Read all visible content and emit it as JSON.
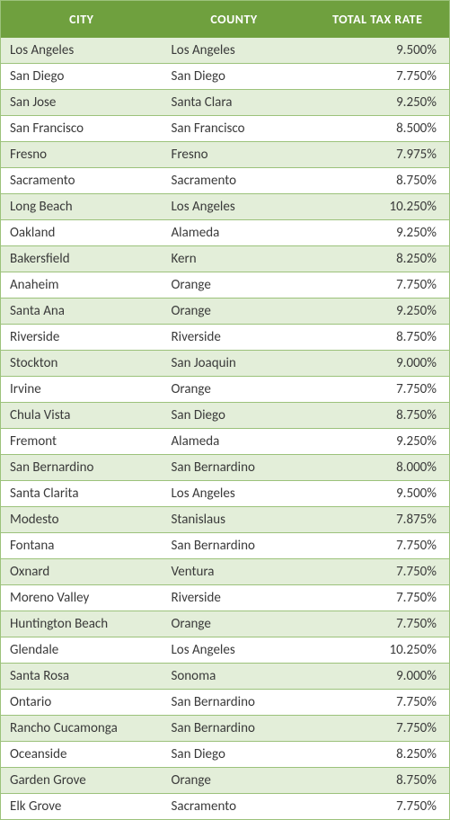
{
  "table": {
    "header_bg": "#6fa03e",
    "header_color": "#ffffff",
    "border_color": "#9cc27b",
    "row_odd_bg": "#e3eed9",
    "row_even_bg": "#ffffff",
    "text_color": "#3a3a3a",
    "columns": [
      "CITY",
      "COUNTY",
      "TOTAL TAX RATE"
    ],
    "rows": [
      {
        "city": "Los Angeles",
        "county": "Los Angeles",
        "rate": "9.500%"
      },
      {
        "city": "San Diego",
        "county": "San Diego",
        "rate": "7.750%"
      },
      {
        "city": "San Jose",
        "county": "Santa Clara",
        "rate": "9.250%"
      },
      {
        "city": "San Francisco",
        "county": "San Francisco",
        "rate": "8.500%"
      },
      {
        "city": "Fresno",
        "county": "Fresno",
        "rate": "7.975%"
      },
      {
        "city": "Sacramento",
        "county": "Sacramento",
        "rate": "8.750%"
      },
      {
        "city": "Long Beach",
        "county": "Los Angeles",
        "rate": "10.250%"
      },
      {
        "city": "Oakland",
        "county": "Alameda",
        "rate": "9.250%"
      },
      {
        "city": "Bakersfield",
        "county": "Kern",
        "rate": "8.250%"
      },
      {
        "city": "Anaheim",
        "county": "Orange",
        "rate": "7.750%"
      },
      {
        "city": "Santa Ana",
        "county": "Orange",
        "rate": "9.250%"
      },
      {
        "city": "Riverside",
        "county": "Riverside",
        "rate": "8.750%"
      },
      {
        "city": "Stockton",
        "county": "San Joaquin",
        "rate": "9.000%"
      },
      {
        "city": "Irvine",
        "county": "Orange",
        "rate": "7.750%"
      },
      {
        "city": "Chula Vista",
        "county": "San Diego",
        "rate": "8.750%"
      },
      {
        "city": "Fremont",
        "county": "Alameda",
        "rate": "9.250%"
      },
      {
        "city": "San Bernardino",
        "county": "San Bernardino",
        "rate": "8.000%"
      },
      {
        "city": "Santa Clarita",
        "county": "Los Angeles",
        "rate": "9.500%"
      },
      {
        "city": "Modesto",
        "county": "Stanislaus",
        "rate": "7.875%"
      },
      {
        "city": "Fontana",
        "county": "San Bernardino",
        "rate": "7.750%"
      },
      {
        "city": "Oxnard",
        "county": "Ventura",
        "rate": "7.750%"
      },
      {
        "city": "Moreno Valley",
        "county": "Riverside",
        "rate": "7.750%"
      },
      {
        "city": "Huntington Beach",
        "county": "Orange",
        "rate": "7.750%"
      },
      {
        "city": "Glendale",
        "county": "Los Angeles",
        "rate": "10.250%"
      },
      {
        "city": "Santa Rosa",
        "county": "Sonoma",
        "rate": "9.000%"
      },
      {
        "city": "Ontario",
        "county": "San Bernardino",
        "rate": "7.750%"
      },
      {
        "city": "Rancho Cucamonga",
        "county": "San Bernardino",
        "rate": "7.750%"
      },
      {
        "city": "Oceanside",
        "county": "San Diego",
        "rate": "8.250%"
      },
      {
        "city": "Garden Grove",
        "county": "Orange",
        "rate": "8.750%"
      },
      {
        "city": "Elk Grove",
        "county": "Sacramento",
        "rate": "7.750%"
      }
    ]
  }
}
